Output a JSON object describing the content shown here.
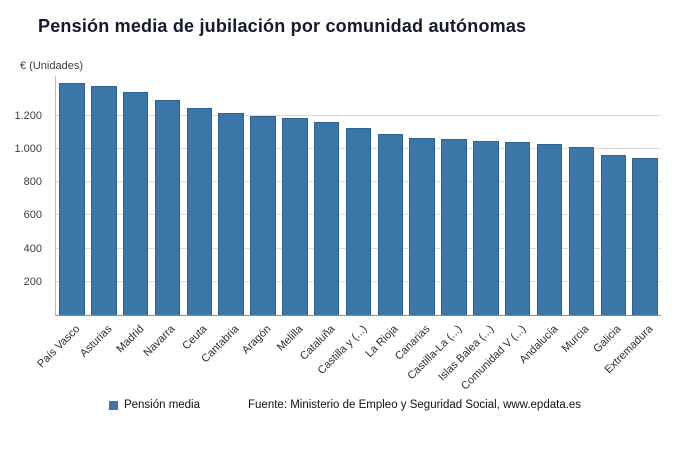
{
  "page": {
    "background": "#ffffff"
  },
  "chart_data": {
    "type": "bar",
    "title": "Pensión media de jubilación por comunidad autónomas",
    "ylabel": "€ (Unidades)",
    "xlabel": "",
    "categories": [
      "País Vasco",
      "Asturias",
      "Madrid",
      "Navarra",
      "Ceuta",
      "Cantabria",
      "Aragón",
      "Melilla",
      "Cataluña",
      "Castilla y (...)",
      "La Rioja",
      "Canarias",
      "Castilla-La (...)",
      "Islas Balea (...)",
      "Comunidad V (...)",
      "Andalucía",
      "Murcia",
      "Galicia",
      "Extremadura"
    ],
    "series": [
      {
        "name": "Pensión media",
        "values": [
          1400,
          1380,
          1345,
          1295,
          1250,
          1215,
          1200,
          1190,
          1160,
          1125,
          1090,
          1065,
          1058,
          1050,
          1042,
          1030,
          1015,
          962,
          948
        ]
      }
    ],
    "legend": [
      "Pensión media"
    ],
    "legend_position": "bottom",
    "grid": true,
    "ylim": [
      0,
      1440
    ],
    "yticks": [
      200,
      400,
      600,
      800,
      1000,
      1200
    ],
    "ytick_labels": [
      "200",
      "400",
      "600",
      "800",
      "1.000",
      "1.200"
    ],
    "bar_color": "#3a76a8",
    "source": "Fuente: Ministerio de Empleo y Seguridad Social, www.epdata.es"
  }
}
